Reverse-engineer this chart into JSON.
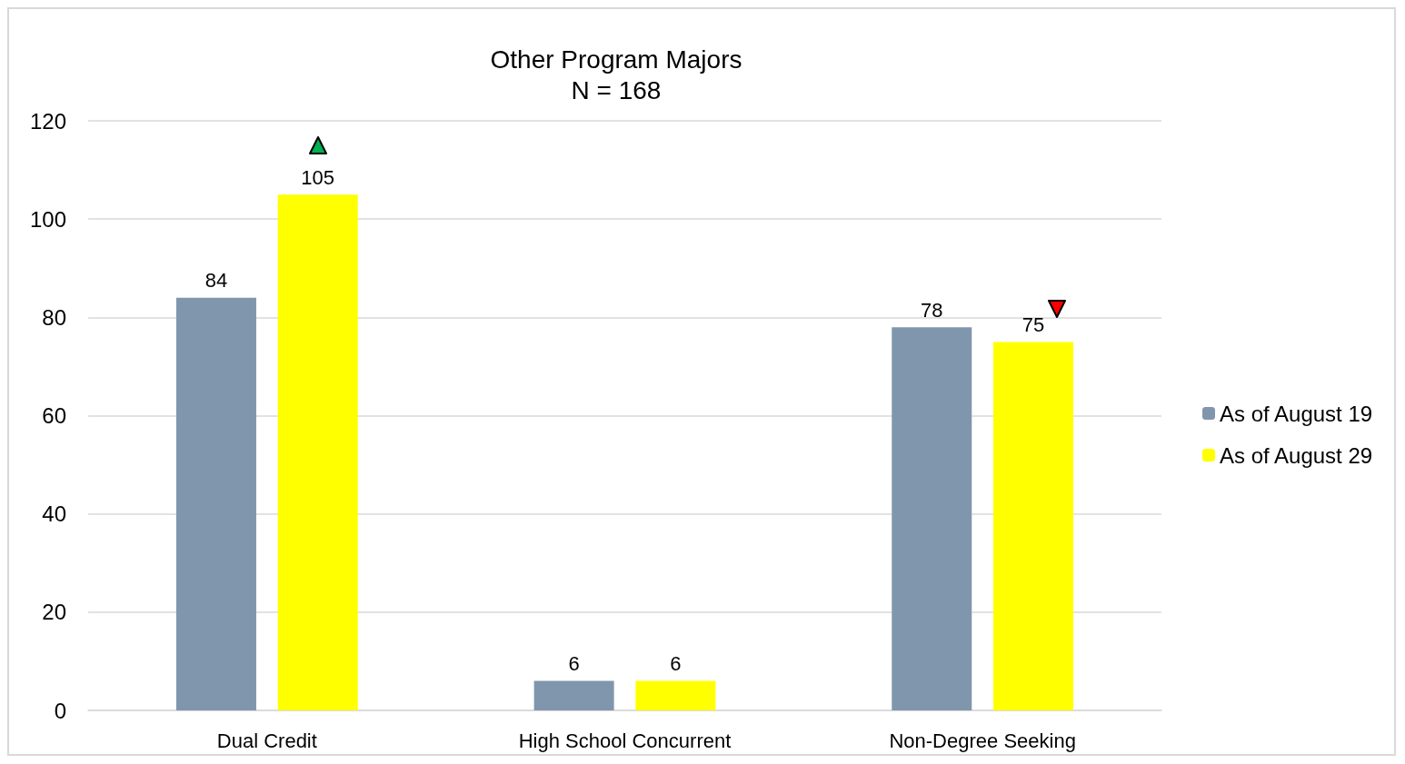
{
  "chart_data": {
    "type": "bar",
    "title": "Other Program Majors",
    "subtitle": "N = 168",
    "categories": [
      "Dual Credit",
      "High School Concurrent",
      "Non-Degree Seeking"
    ],
    "series": [
      {
        "name": "As of August 19",
        "color": "#8096ac",
        "values": [
          84,
          6,
          78
        ]
      },
      {
        "name": "As of August 29",
        "color": "#ffff00",
        "values": [
          105,
          6,
          75
        ]
      }
    ],
    "ylim": [
      0,
      120
    ],
    "yticks": [
      0,
      20,
      40,
      60,
      80,
      100,
      120
    ],
    "grid": "y",
    "legend": "right",
    "data_labels": true
  }
}
